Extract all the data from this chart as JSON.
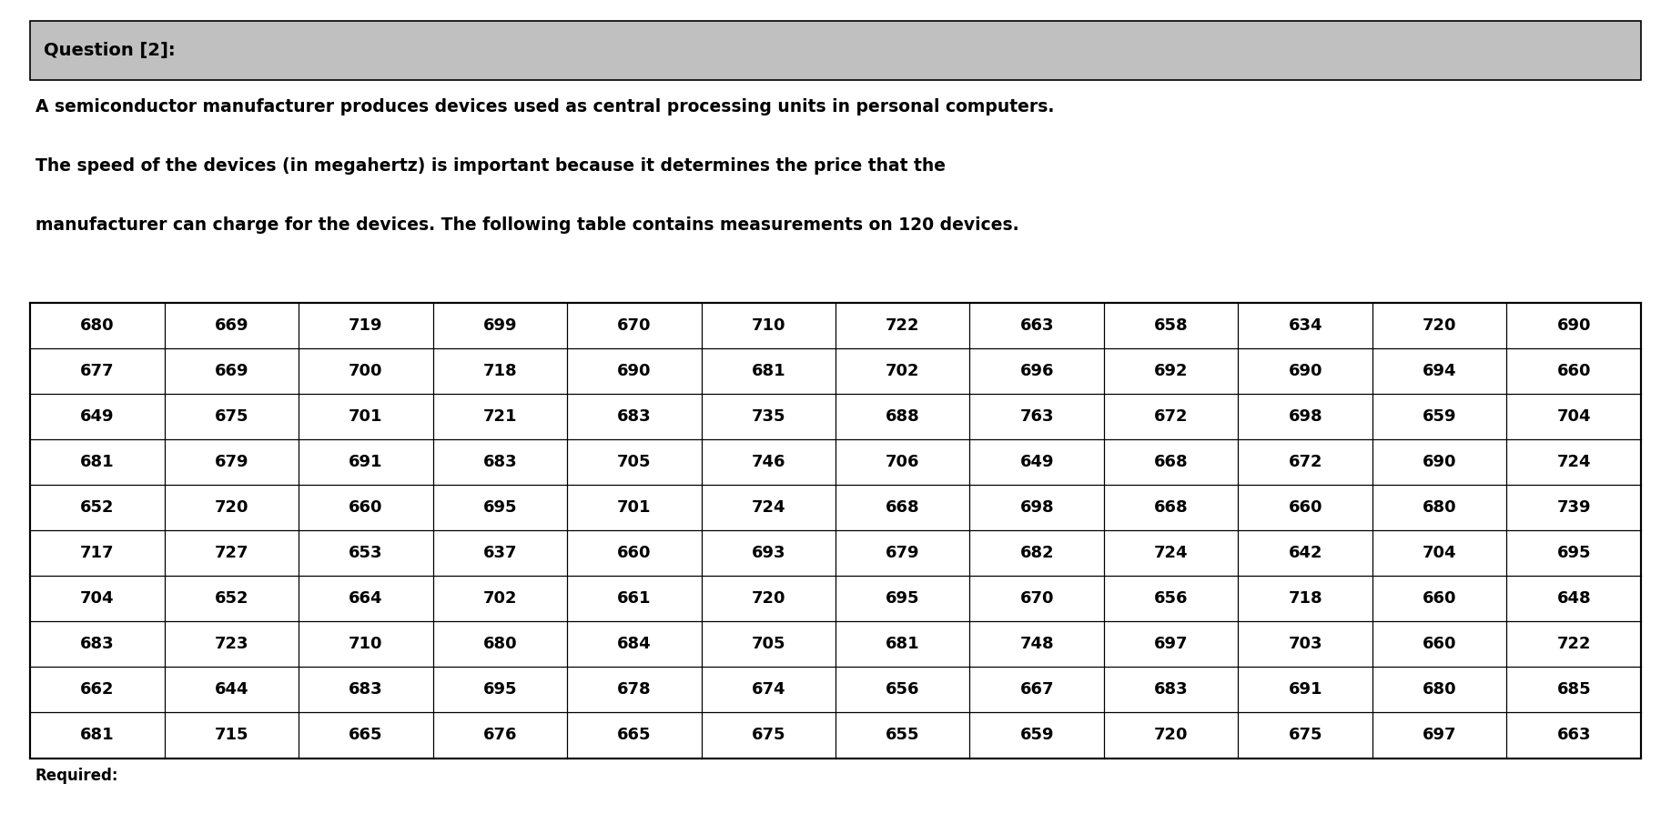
{
  "title": "Question [2]:",
  "title_bg": "#c0c0c0",
  "paragraph_lines": [
    "A semiconductor manufacturer produces devices used as central processing units in personal computers.",
    "The speed of the devices (in megahertz) is important because it determines the price that the",
    "manufacturer can charge for the devices. The following table contains measurements on 120 devices."
  ],
  "required_text": "Required:",
  "table_data": [
    [
      680,
      669,
      719,
      699,
      670,
      710,
      722,
      663,
      658,
      634,
      720,
      690
    ],
    [
      677,
      669,
      700,
      718,
      690,
      681,
      702,
      696,
      692,
      690,
      694,
      660
    ],
    [
      649,
      675,
      701,
      721,
      683,
      735,
      688,
      763,
      672,
      698,
      659,
      704
    ],
    [
      681,
      679,
      691,
      683,
      705,
      746,
      706,
      649,
      668,
      672,
      690,
      724
    ],
    [
      652,
      720,
      660,
      695,
      701,
      724,
      668,
      698,
      668,
      660,
      680,
      739
    ],
    [
      717,
      727,
      653,
      637,
      660,
      693,
      679,
      682,
      724,
      642,
      704,
      695
    ],
    [
      704,
      652,
      664,
      702,
      661,
      720,
      695,
      670,
      656,
      718,
      660,
      648
    ],
    [
      683,
      723,
      710,
      680,
      684,
      705,
      681,
      748,
      697,
      703,
      660,
      722
    ],
    [
      662,
      644,
      683,
      695,
      678,
      674,
      656,
      667,
      683,
      691,
      680,
      685
    ],
    [
      681,
      715,
      665,
      676,
      665,
      675,
      655,
      659,
      720,
      675,
      697,
      663
    ]
  ],
  "bg_color": "#ffffff",
  "border_color": "#000000",
  "text_color": "#000000",
  "header_bg": "#c0c0c0",
  "font_size_title": 14,
  "font_size_para": 13.5,
  "font_size_table": 13,
  "font_size_required": 12
}
